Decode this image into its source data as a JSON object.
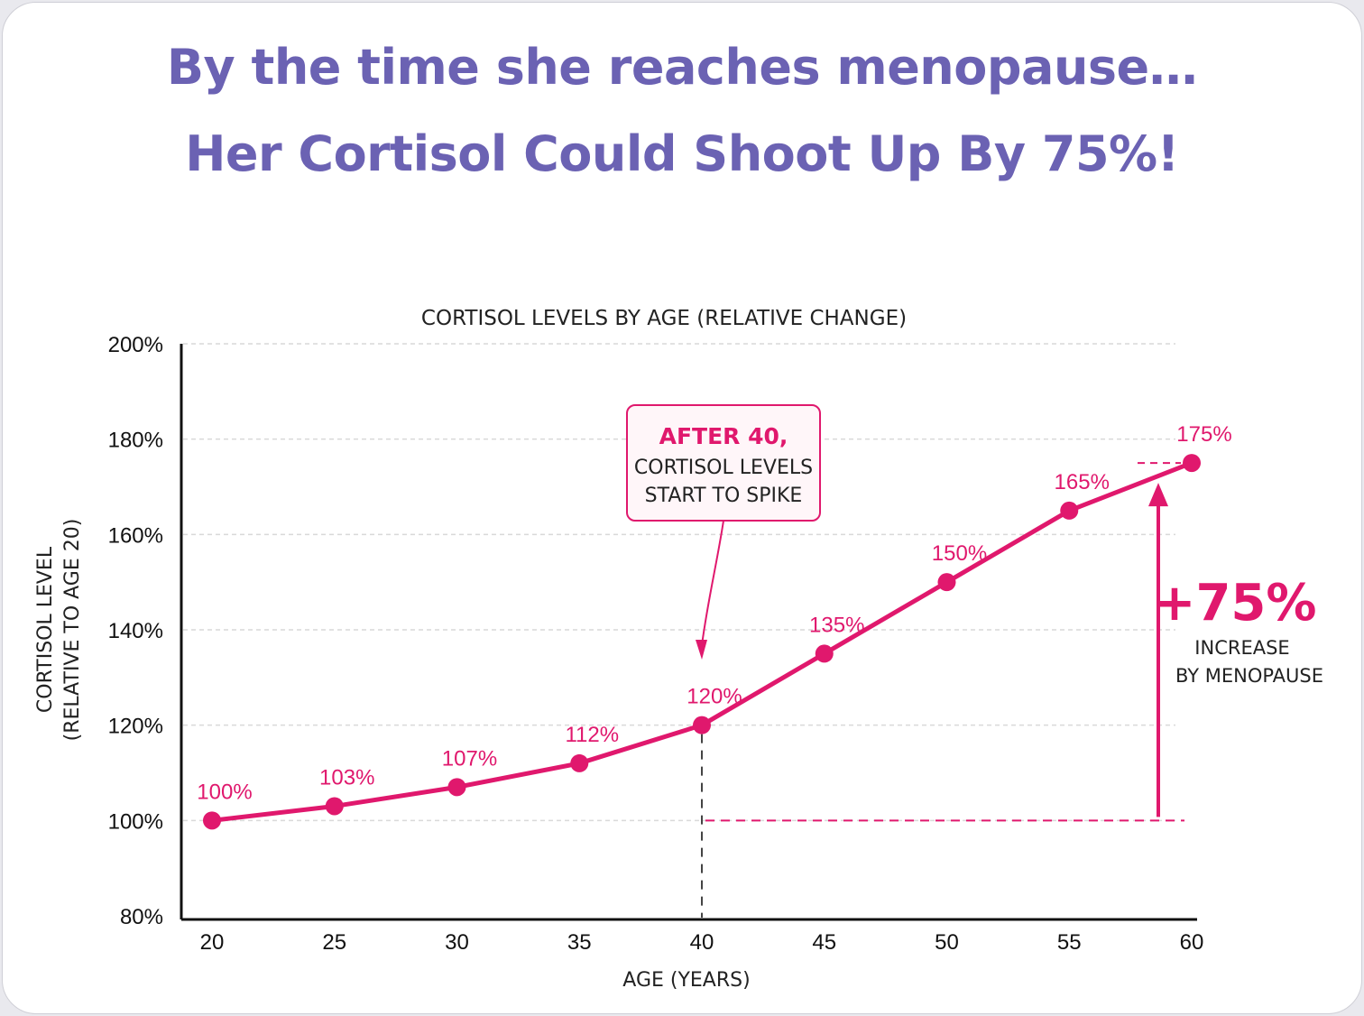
{
  "headline": {
    "line1": "By the time she reaches menopause…",
    "line2": "Her Cortisol Could Shoot Up By 75%!"
  },
  "colors": {
    "headline": "#6b62b3",
    "series": "#e0186d",
    "axis": "#111111",
    "grid": "#d9d9d9"
  },
  "chart_data": {
    "type": "line",
    "title": "CORTISOL LEVELS BY AGE (RELATIVE CHANGE)",
    "xlabel": "AGE (YEARS)",
    "ylabel_line1": "CORTISOL LEVEL",
    "ylabel_line2": "(RELATIVE TO AGE 20)",
    "x_ticks": [
      20,
      25,
      30,
      35,
      40,
      45,
      50,
      55,
      60
    ],
    "y_ticks": [
      80,
      100,
      120,
      140,
      160,
      180,
      200
    ],
    "y_tick_labels": [
      "80%",
      "100%",
      "120%",
      "140%",
      "160%",
      "180%",
      "200%"
    ],
    "xlim": [
      20,
      60
    ],
    "ylim": [
      80,
      200
    ],
    "grid": true,
    "series": [
      {
        "x": [
          20,
          25,
          30,
          35,
          40,
          45,
          50,
          55,
          60
        ],
        "y": [
          100,
          103,
          107,
          112,
          120,
          135,
          150,
          165,
          175
        ],
        "labels": [
          "100%",
          "103%",
          "107%",
          "112%",
          "120%",
          "135%",
          "150%",
          "165%",
          "175%"
        ]
      }
    ],
    "annotations": {
      "callout_line1": "AFTER 40,",
      "callout_line2": "CORTISOL LEVELS",
      "callout_line3": "START TO SPIKE",
      "callout_points_to_age": 40,
      "increase_value": "+75%",
      "increase_line1": "INCREASE",
      "increase_line2": "BY MENOPAUSE"
    }
  }
}
